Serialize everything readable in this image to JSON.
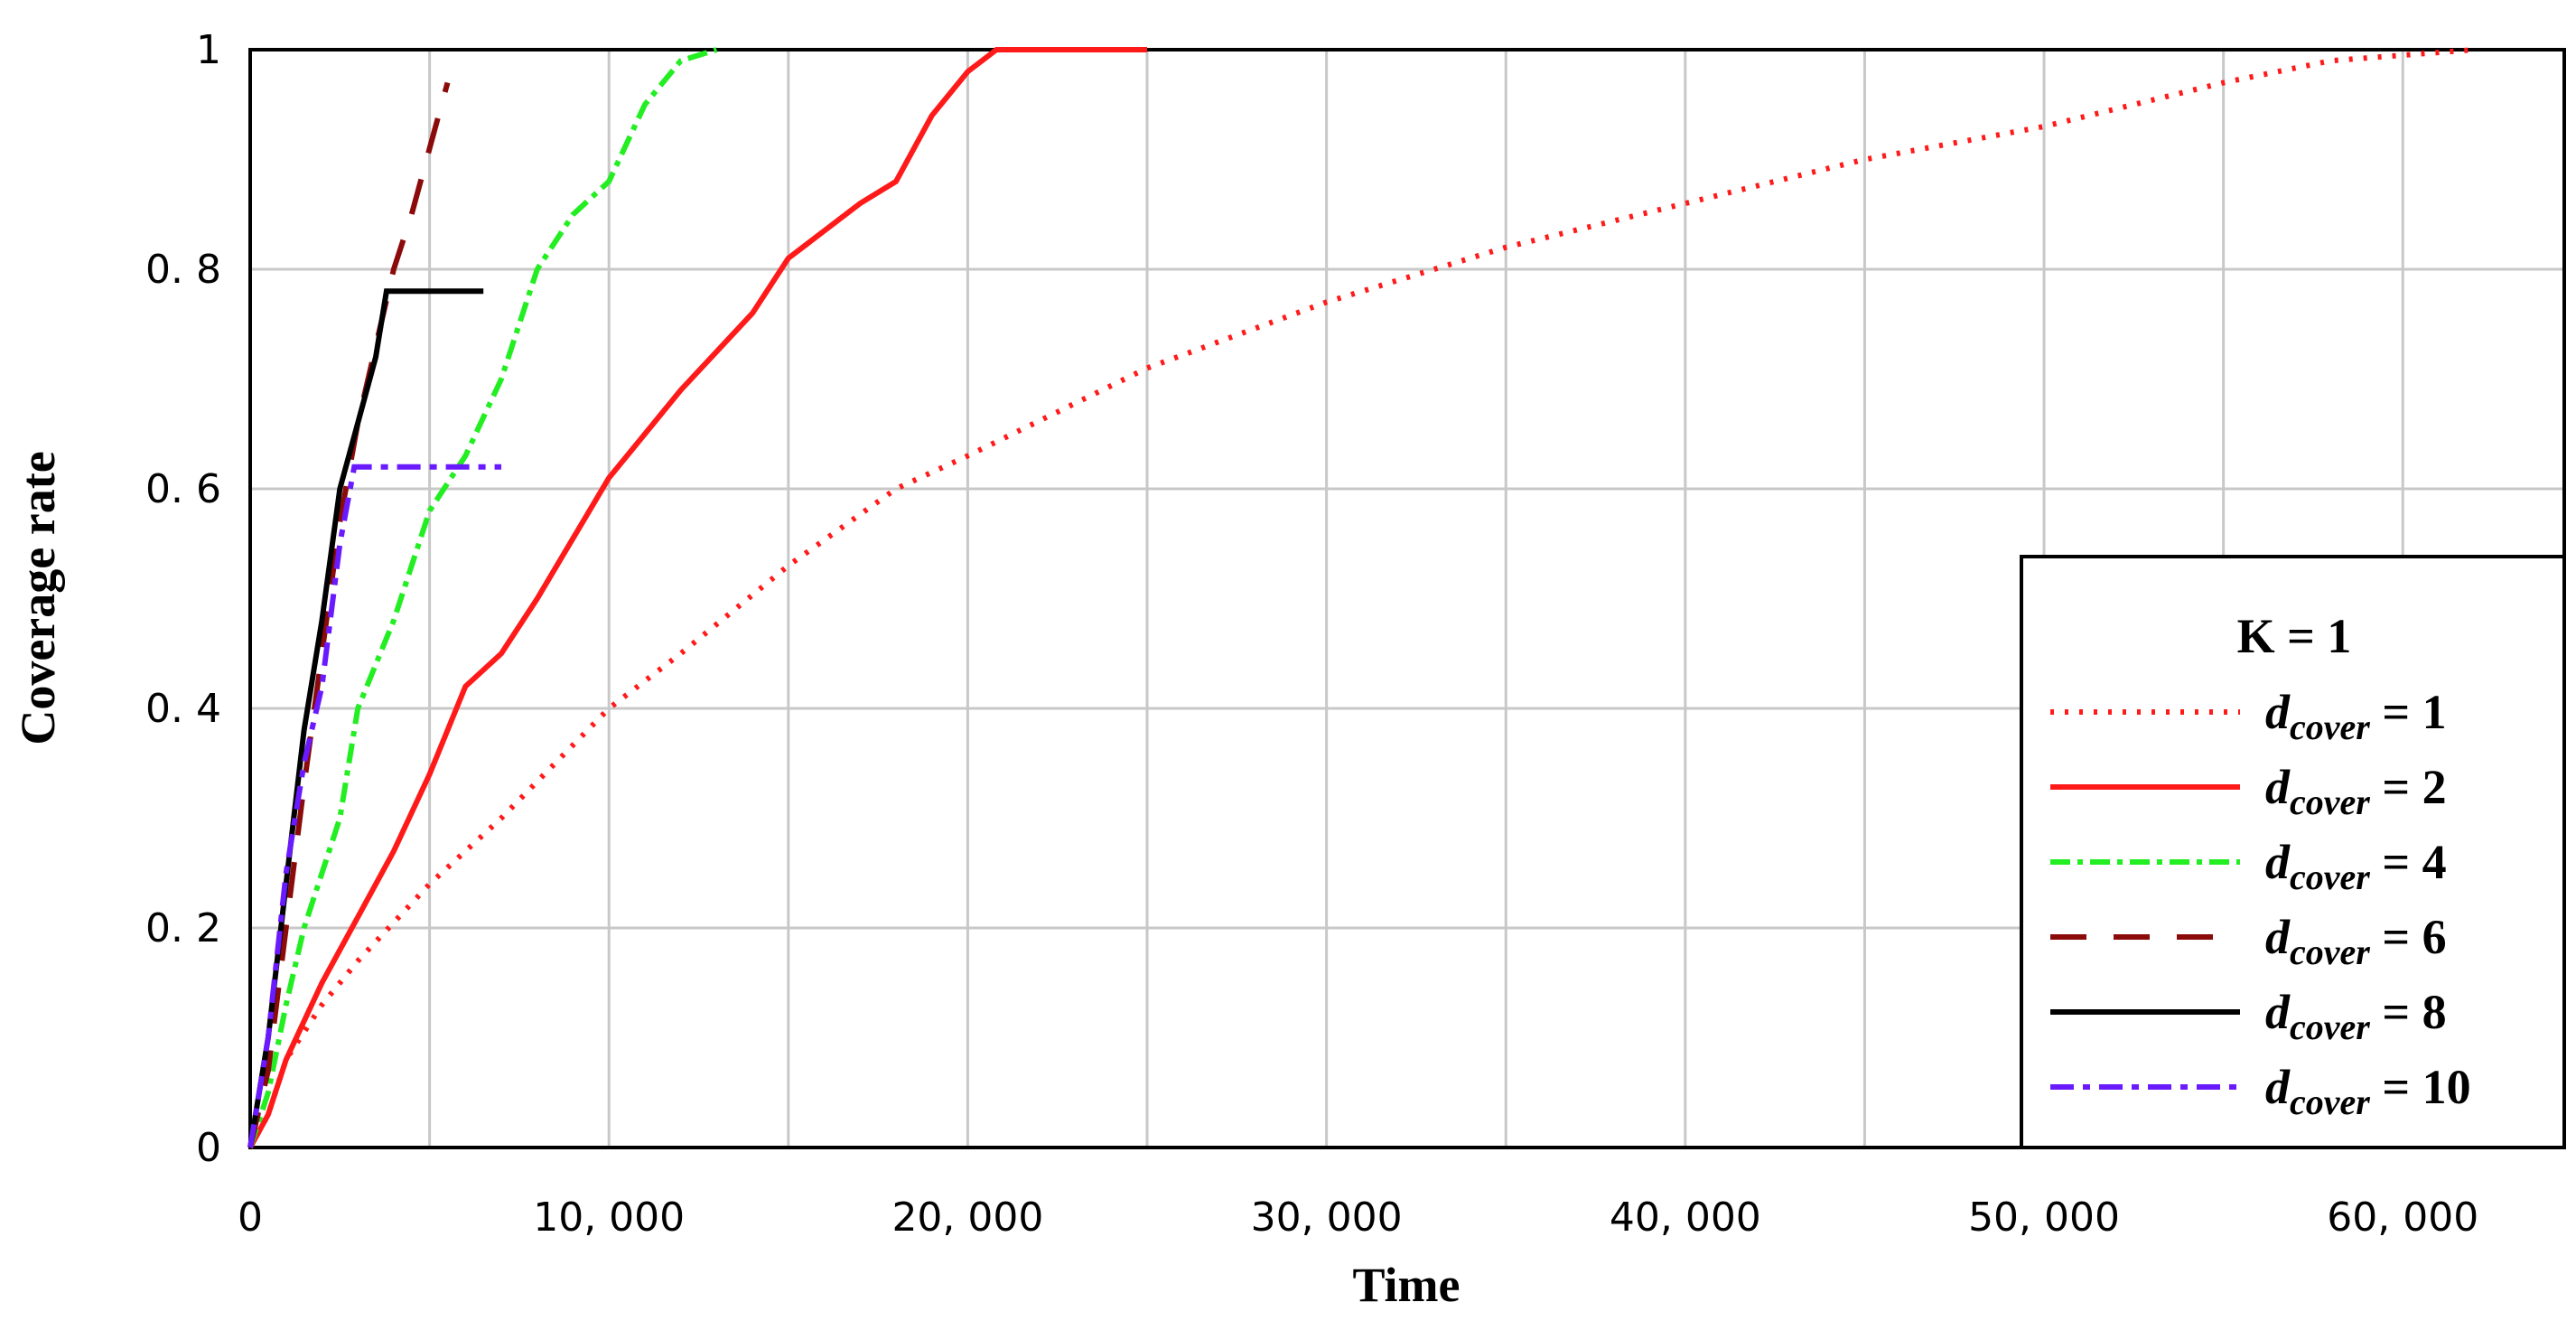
{
  "chart_data": {
    "type": "line",
    "xlabel": "Time",
    "ylabel": "Coverage rate",
    "xlim": [
      0,
      64500
    ],
    "ylim": [
      0,
      1
    ],
    "xticks": [
      0,
      {
        "value": 10000,
        "label": "10, 000"
      },
      {
        "value": 20000,
        "label": "20, 000"
      },
      {
        "value": 30000,
        "label": "30, 000"
      },
      {
        "value": 40000,
        "label": "40, 000"
      },
      {
        "value": 50000,
        "label": "50, 000"
      },
      {
        "value": 60000,
        "label": "60, 000"
      }
    ],
    "xgrid": [
      5000,
      15000,
      25000,
      35000,
      45000,
      55000
    ],
    "yticks": [
      0,
      {
        "value": 0.2,
        "label": "0. 2"
      },
      {
        "value": 0.4,
        "label": "0. 4"
      },
      {
        "value": 0.6,
        "label": "0. 6"
      },
      {
        "value": 0.8,
        "label": "0. 8"
      },
      1
    ],
    "grid": true,
    "legend_position": "lower right",
    "legend_title": "K = 1",
    "series": [
      {
        "name": "dcover = 1",
        "color": "#ff1a1a",
        "dash": "4 12",
        "x": [
          0,
          500,
          1000,
          2000,
          3000,
          5000,
          7000,
          10000,
          12000,
          15000,
          18000,
          20000,
          25000,
          30000,
          33000,
          35000,
          40000,
          45000,
          50000,
          55000,
          58000,
          62000
        ],
        "values": [
          0,
          0.03,
          0.08,
          0.13,
          0.17,
          0.24,
          0.3,
          0.4,
          0.45,
          0.53,
          0.6,
          0.63,
          0.71,
          0.77,
          0.8,
          0.82,
          0.86,
          0.9,
          0.93,
          0.97,
          0.99,
          1.0
        ]
      },
      {
        "name": "dcover = 2",
        "color": "#ff1a1a",
        "dash": "",
        "x": [
          0,
          500,
          1000,
          2000,
          3000,
          4000,
          5000,
          6000,
          7000,
          8000,
          10000,
          12000,
          14000,
          15000,
          17000,
          18000,
          19000,
          20000,
          20800,
          25000
        ],
        "values": [
          0,
          0.03,
          0.08,
          0.15,
          0.21,
          0.27,
          0.34,
          0.42,
          0.45,
          0.5,
          0.61,
          0.69,
          0.76,
          0.81,
          0.86,
          0.88,
          0.94,
          0.98,
          1.0,
          1.0
        ]
      },
      {
        "name": "dcover = 4",
        "color": "#22ee22",
        "dash": "22 8 6 8",
        "x": [
          0,
          500,
          1000,
          1500,
          2500,
          3000,
          4000,
          5000,
          6000,
          7000,
          8000,
          9000,
          10000,
          11000,
          12000,
          13000
        ],
        "values": [
          0,
          0.05,
          0.13,
          0.2,
          0.3,
          0.4,
          0.48,
          0.58,
          0.63,
          0.7,
          0.8,
          0.85,
          0.88,
          0.95,
          0.99,
          1.0
        ]
      },
      {
        "name": "dcover = 6",
        "color": "#8b0a0a",
        "dash": "40 30",
        "x": [
          0,
          500,
          1000,
          1500,
          2000,
          2500,
          3000,
          3500,
          4000,
          4500,
          5000,
          5500
        ],
        "values": [
          0,
          0.07,
          0.2,
          0.33,
          0.45,
          0.57,
          0.66,
          0.73,
          0.8,
          0.85,
          0.91,
          0.97
        ]
      },
      {
        "name": "dcover = 8",
        "color": "#000000",
        "dash": "",
        "x": [
          0,
          500,
          1000,
          1500,
          2000,
          2500,
          3000,
          3500,
          3800,
          6500
        ],
        "values": [
          0,
          0.1,
          0.24,
          0.38,
          0.48,
          0.6,
          0.66,
          0.72,
          0.78,
          0.78
        ]
      },
      {
        "name": "dcover = 10",
        "color": "#6a1aff",
        "dash": "26 10 8 10",
        "x": [
          0,
          500,
          1000,
          1500,
          2000,
          2500,
          2900,
          7000
        ],
        "values": [
          0,
          0.1,
          0.25,
          0.35,
          0.42,
          0.55,
          0.62,
          0.62
        ]
      }
    ]
  }
}
